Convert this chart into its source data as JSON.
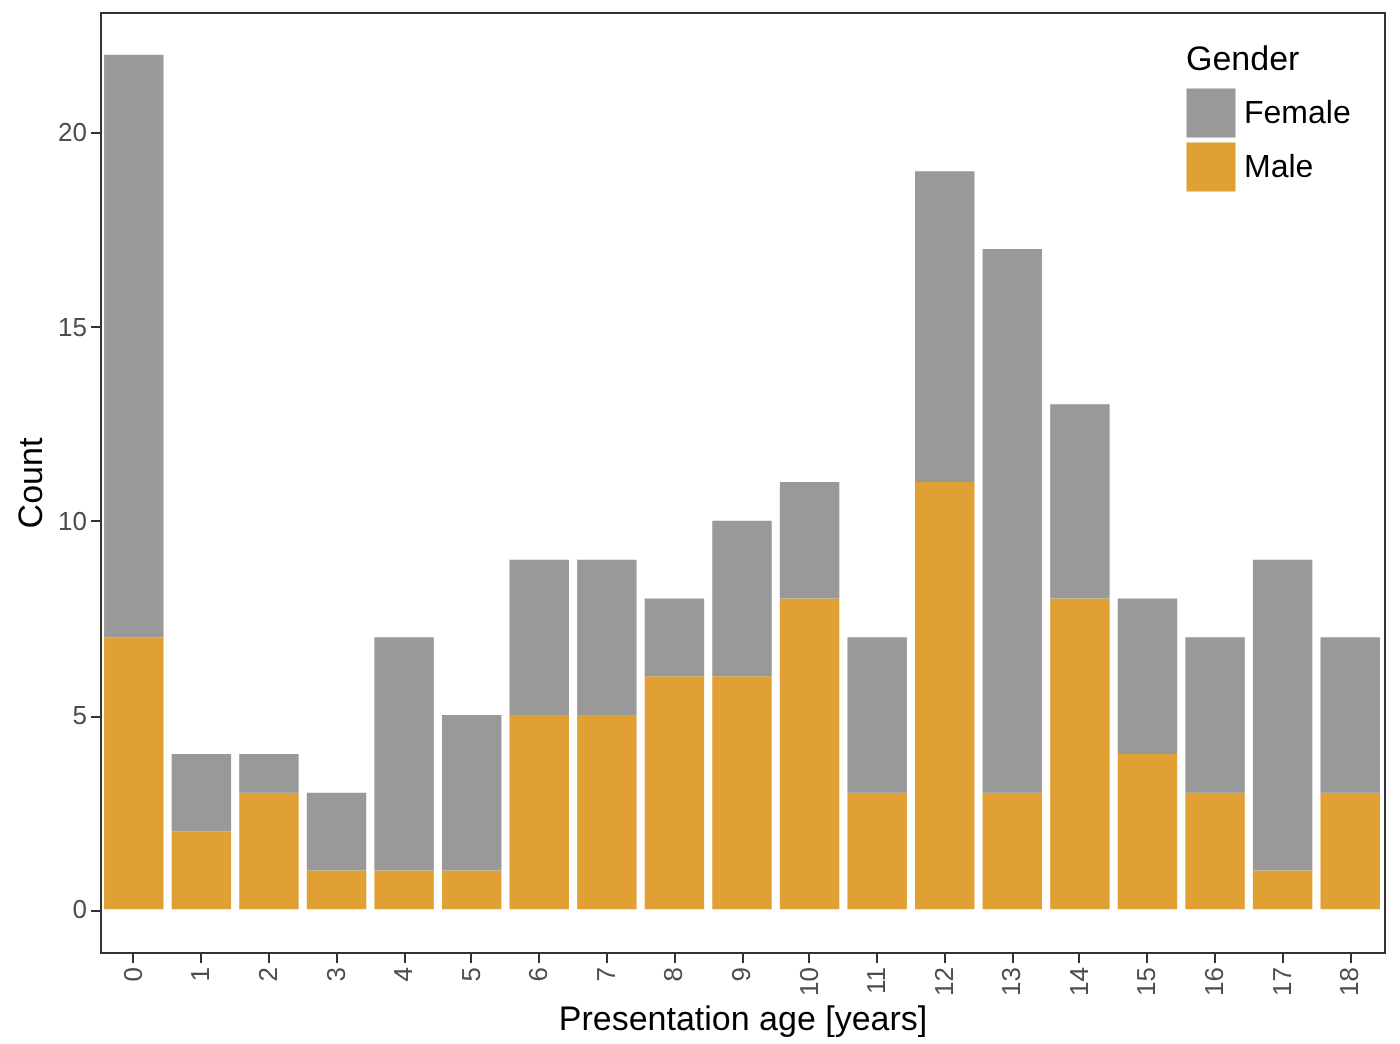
{
  "chart_data": {
    "type": "bar",
    "stacked": true,
    "xlabel": "Presentation age [years]",
    "ylabel": "Count",
    "legend_title": "Gender",
    "legend": "top right",
    "categories": [
      "0",
      "1",
      "2",
      "3",
      "4",
      "5",
      "6",
      "7",
      "8",
      "9",
      "10",
      "11",
      "12",
      "13",
      "14",
      "15",
      "16",
      "17",
      "18"
    ],
    "series": [
      {
        "name": "Male",
        "color": "#e0a033",
        "values": [
          7,
          2,
          3,
          1,
          1,
          1,
          5,
          5,
          6,
          6,
          8,
          3,
          11,
          3,
          8,
          4,
          3,
          1,
          3
        ]
      },
      {
        "name": "Female",
        "color": "#999999",
        "values": [
          15,
          2,
          1,
          2,
          6,
          4,
          4,
          4,
          2,
          4,
          3,
          4,
          8,
          14,
          5,
          4,
          4,
          8,
          4
        ]
      }
    ],
    "ylim": [
      -1.1,
      23.1
    ],
    "yticks": [
      0,
      5,
      10,
      15,
      20
    ]
  }
}
